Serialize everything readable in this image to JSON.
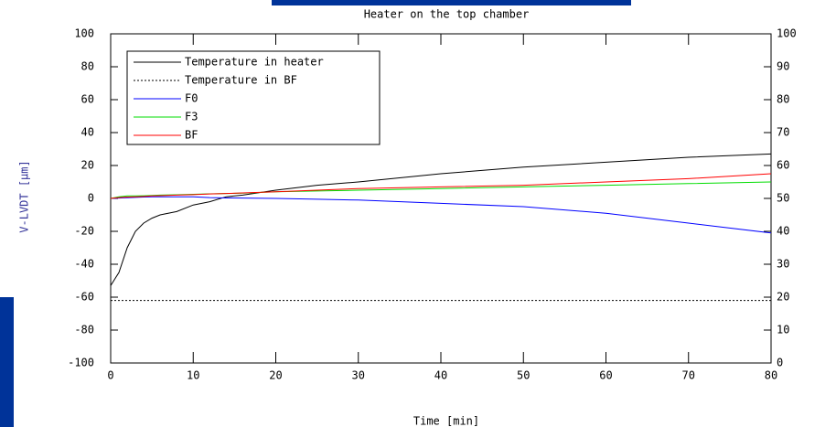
{
  "chart_data": {
    "type": "line",
    "title": "Heater on the top chamber",
    "xlabel": "Time [min]",
    "ylabel": "V-LVDT [µm]",
    "x": [
      0,
      1,
      2,
      3,
      4,
      5,
      6,
      8,
      10,
      12,
      14,
      16,
      20,
      25,
      30,
      40,
      50,
      60,
      70,
      80
    ],
    "xlim": [
      0,
      80
    ],
    "xticks": [
      0,
      10,
      20,
      30,
      40,
      50,
      60,
      70,
      80
    ],
    "ylim": [
      -100,
      100
    ],
    "yticks": [
      -100,
      -80,
      -60,
      -40,
      -20,
      0,
      20,
      40,
      60,
      80,
      100
    ],
    "y2lim": [
      0,
      100
    ],
    "y2ticks": [
      0,
      10,
      20,
      30,
      40,
      50,
      60,
      70,
      80,
      90,
      100
    ],
    "series": [
      {
        "name": "Temperature in heater",
        "color": "#000000",
        "dash": "solid",
        "axis": "y2",
        "values": [
          23.5,
          27.5,
          35,
          40,
          42.5,
          44,
          45,
          46,
          48,
          49,
          50.5,
          51,
          52.5,
          54,
          55,
          57.5,
          59.5,
          61,
          62.5,
          63.5
        ]
      },
      {
        "name": "Temperature in BF",
        "color": "#000000",
        "dash": "dotted",
        "axis": "y2",
        "values": [
          19,
          19,
          19,
          19,
          19,
          19,
          19,
          19,
          19,
          19,
          19,
          19,
          19,
          19,
          19,
          19,
          19,
          19,
          19,
          19
        ]
      },
      {
        "name": "F0",
        "color": "#0000ff",
        "dash": "solid",
        "values": [
          0,
          0.2,
          0.4,
          0.6,
          0.8,
          1,
          1,
          1,
          1,
          0.5,
          0.3,
          0.2,
          0,
          -0.5,
          -1,
          -3,
          -5,
          -9,
          -15,
          -21
        ]
      },
      {
        "name": "F3",
        "color": "#00dd00",
        "dash": "solid",
        "values": [
          0,
          1,
          1.5,
          1.5,
          1.6,
          1.8,
          2,
          2.2,
          2.5,
          2.8,
          3,
          3.2,
          4,
          4.5,
          5,
          6,
          7,
          8,
          9,
          10
        ]
      },
      {
        "name": "BF",
        "color": "#ff0000",
        "dash": "solid",
        "values": [
          0,
          0.5,
          0.8,
          1,
          1.2,
          1.5,
          1.7,
          2,
          2.3,
          2.7,
          3,
          3.3,
          4,
          5,
          6,
          7,
          8,
          10,
          12,
          15
        ]
      }
    ]
  }
}
